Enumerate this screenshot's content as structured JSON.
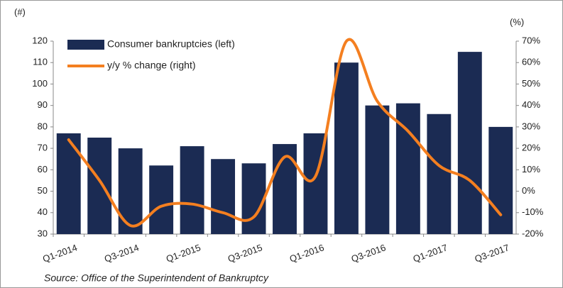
{
  "chart_data": {
    "type": "combo",
    "categories": [
      "Q1-2014",
      null,
      "Q3-2014",
      null,
      "Q1-2015",
      null,
      "Q3-2015",
      null,
      "Q1-2016",
      null,
      "Q3-2016",
      null,
      "Q1-2017",
      null,
      "Q3-2017"
    ],
    "series": [
      {
        "name": "Consumer bankruptcies (left)",
        "type": "bar",
        "color": "#1b2b53",
        "values": [
          77,
          75,
          70,
          62,
          71,
          65,
          63,
          72,
          77,
          110,
          90,
          91,
          86,
          115,
          80
        ]
      },
      {
        "name": "y/y % change (right)",
        "type": "line",
        "axis": "y2",
        "color": "#f47f20",
        "values": [
          24,
          5,
          -16,
          -7,
          -6,
          -10,
          -12,
          16,
          7,
          70,
          42,
          28,
          12,
          5,
          -11
        ]
      }
    ],
    "ylabel": "(#)",
    "y2label": "(%)",
    "ylim": [
      30,
      120
    ],
    "yticks": [
      30,
      40,
      50,
      60,
      70,
      80,
      90,
      100,
      110,
      120
    ],
    "y2lim": [
      -20,
      70
    ],
    "y2ticks": [
      {
        "value": -20,
        "label": "-20%"
      },
      {
        "value": -10,
        "label": "-10%"
      },
      {
        "value": 0,
        "label": "0%"
      },
      {
        "value": 10,
        "label": "10%"
      },
      {
        "value": 20,
        "label": "20%"
      },
      {
        "value": 30,
        "label": "30%"
      },
      {
        "value": 40,
        "label": "40%"
      },
      {
        "value": 50,
        "label": "50%"
      },
      {
        "value": 60,
        "label": "60%"
      },
      {
        "value": 70,
        "label": "70%"
      }
    ],
    "legend": "upper left",
    "grid": false,
    "source": "Source: Office of the Superintendent of Bankruptcy"
  }
}
